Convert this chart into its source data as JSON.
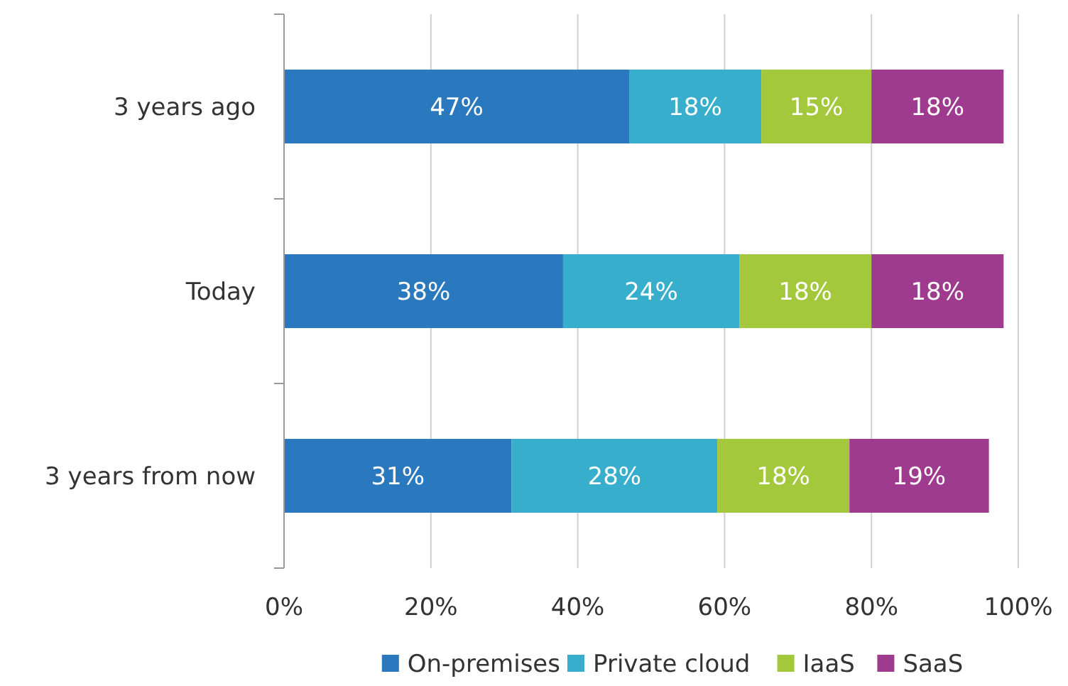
{
  "chart_data": {
    "type": "bar",
    "orientation": "horizontal",
    "stacked": true,
    "categories": [
      "3 years ago",
      "Today",
      "3 years from now"
    ],
    "series": [
      {
        "name": "On-premises",
        "color": "#2a78be",
        "values": [
          47,
          38,
          31
        ]
      },
      {
        "name": "Private cloud",
        "color": "#37aecb",
        "values": [
          18,
          24,
          28
        ]
      },
      {
        "name": "IaaS",
        "color": "#a4c83c",
        "values": [
          15,
          18,
          18
        ]
      },
      {
        "name": "SaaS",
        "color": "#9e3b8f",
        "values": [
          18,
          18,
          19
        ]
      }
    ],
    "xlim": [
      0,
      100
    ],
    "xticks": [
      {
        "value": 0,
        "label": "0%"
      },
      {
        "value": 20,
        "label": "20%"
      },
      {
        "value": 40,
        "label": "40%"
      },
      {
        "value": 60,
        "label": "60%"
      },
      {
        "value": 80,
        "label": "80%"
      },
      {
        "value": 100,
        "label": "100%"
      }
    ],
    "value_labels": [
      [
        "47%",
        "38%",
        "31%"
      ],
      [
        "18%",
        "24%",
        "28%"
      ],
      [
        "15%",
        "18%",
        "18%"
      ],
      [
        "18%",
        "18%",
        "19%"
      ]
    ],
    "grid": "x",
    "legend": "bottom"
  }
}
